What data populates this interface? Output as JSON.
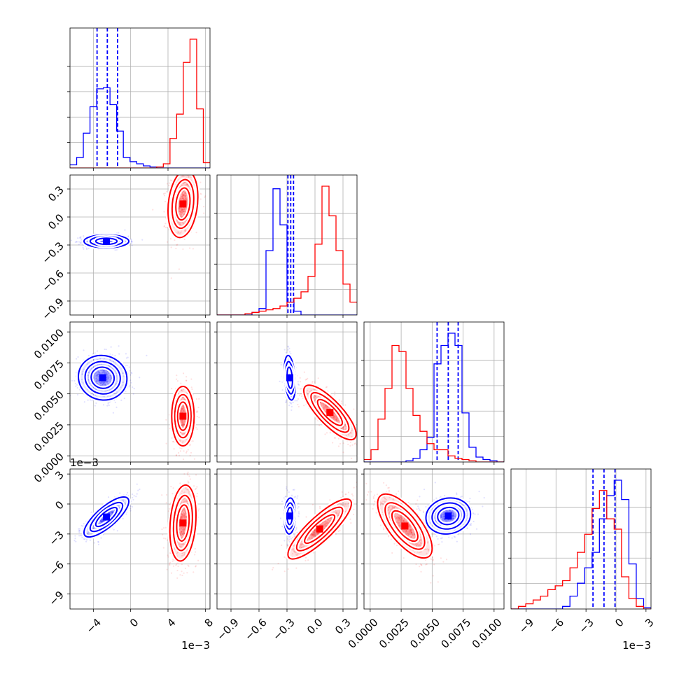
{
  "chart_data": {
    "type": "corner",
    "series": [
      {
        "name": "",
        "color": "#0000ff"
      },
      {
        "name": "",
        "color": "#ff0000"
      }
    ],
    "grid": true,
    "quantiles_shown_for": "blue",
    "parameters": [
      {
        "index": 0,
        "range": [
          -6.5,
          8.5
        ],
        "ticks": [
          -4,
          0,
          4,
          8
        ],
        "tick_labels": [
          "−4",
          "0",
          "4",
          "8"
        ],
        "offset_label": "1e−3"
      },
      {
        "index": 1,
        "range": [
          -1.05,
          0.45
        ],
        "ticks": [
          -0.9,
          -0.6,
          -0.3,
          0.0,
          0.3
        ],
        "tick_labels": [
          "−0.9",
          "−0.6",
          "−0.3",
          "0.0",
          "0.3"
        ],
        "offset_label": ""
      },
      {
        "index": 2,
        "range": [
          -0.0005,
          0.0108
        ],
        "ticks": [
          0.0,
          0.0025,
          0.005,
          0.0075,
          0.01
        ],
        "tick_labels": [
          "0.0000",
          "0.0025",
          "0.0050",
          "0.0075",
          "0.0100"
        ],
        "offset_label": ""
      },
      {
        "index": 3,
        "range": [
          -10.5,
          3.5
        ],
        "ticks": [
          -9,
          -6,
          -3,
          0,
          3
        ],
        "tick_labels": [
          "−9",
          "−6",
          "−3",
          "0",
          "3"
        ],
        "offset_label": "1e−3"
      }
    ],
    "marginals": [
      {
        "param": 0,
        "blue": {
          "counts": [
            0.03,
            0.1,
            0.33,
            0.58,
            0.75,
            0.76,
            0.6,
            0.35,
            0.1,
            0.06,
            0.04,
            0.02,
            0.01,
            0,
            0,
            0,
            0,
            0,
            0,
            0,
            0
          ],
          "quantile_lines": [
            -3.6,
            -2.5,
            -1.4
          ]
        },
        "red": {
          "counts": [
            0,
            0,
            0,
            0,
            0,
            0,
            0,
            0,
            0,
            0,
            0,
            0,
            0,
            0.01,
            0.04,
            0.28,
            0.51,
            1.0,
            1.22,
            0.56,
            0.05
          ],
          "quantile_lines": []
        }
      },
      {
        "param": 1,
        "blue": {
          "counts": [
            0,
            0,
            0,
            0,
            0,
            0.02,
            0.05,
            0.5,
            0.98,
            0.7,
            0.1,
            0.03,
            0,
            0,
            0,
            0,
            0,
            0,
            0,
            0
          ],
          "quantile_lines": [
            -0.29,
            -0.26,
            -0.23
          ]
        },
        "red": {
          "counts": [
            0,
            0,
            0,
            0,
            0.01,
            0.02,
            0.03,
            0.04,
            0.05,
            0.07,
            0.1,
            0.13,
            0.18,
            0.3,
            0.55,
            1.0,
            0.77,
            0.5,
            0.24,
            0.1
          ],
          "quantile_lines": []
        }
      },
      {
        "param": 2,
        "blue": {
          "counts": [
            0,
            0,
            0,
            0,
            0,
            0,
            0.01,
            0.03,
            0.1,
            0.2,
            0.8,
            0.95,
            1.05,
            0.95,
            0.4,
            0.12,
            0.04,
            0.02,
            0.01,
            0
          ],
          "quantile_lines": [
            0.0054,
            0.0063,
            0.0071
          ]
        },
        "red": {
          "counts": [
            0.02,
            0.1,
            0.35,
            0.6,
            0.95,
            0.9,
            0.6,
            0.38,
            0.25,
            0.15,
            0.1,
            0.1,
            0.05,
            0.03,
            0.02,
            0.01,
            0,
            0,
            0,
            0
          ],
          "quantile_lines": []
        }
      },
      {
        "param": 3,
        "blue": {
          "counts": [
            0,
            0,
            0,
            0,
            0,
            0,
            0,
            0.02,
            0.1,
            0.2,
            0.32,
            0.44,
            0.7,
            0.88,
            1.0,
            0.85,
            0.35,
            0.08,
            0.01
          ],
          "quantile_lines": [
            -2.3,
            -1.2,
            -0.1
          ]
        },
        "red": {
          "counts": [
            0,
            0.02,
            0.04,
            0.07,
            0.1,
            0.15,
            0.18,
            0.22,
            0.32,
            0.44,
            0.58,
            0.78,
            0.92,
            0.7,
            0.62,
            0.25,
            0.08,
            0.02,
            0
          ]
        }
      }
    ],
    "scatter_panels": [
      {
        "x": 0,
        "y": 1,
        "blue": {
          "center": [
            -2.6,
            -0.26
          ],
          "sd": [
            1.2,
            0.035
          ],
          "corr": 0.0
        },
        "red": {
          "center": [
            5.6,
            0.14
          ],
          "sd": [
            0.8,
            0.18
          ],
          "corr": 0.2
        }
      },
      {
        "x": 0,
        "y": 2,
        "blue": {
          "center": [
            -3.0,
            0.0063
          ],
          "sd": [
            1.3,
            0.0009
          ],
          "corr": -0.05
        },
        "red": {
          "center": [
            5.6,
            0.0032
          ],
          "sd": [
            0.6,
            0.0012
          ],
          "corr": 0.0
        }
      },
      {
        "x": 1,
        "y": 2,
        "blue": {
          "center": [
            -0.27,
            0.0063
          ],
          "sd": [
            0.03,
            0.0009
          ],
          "corr": -0.3
        },
        "red": {
          "center": [
            0.16,
            0.0035
          ],
          "sd": [
            0.14,
            0.0011
          ],
          "corr": -0.8
        }
      },
      {
        "x": 0,
        "y": 3,
        "blue": {
          "center": [
            -2.6,
            -1.3
          ],
          "sd": [
            1.2,
            1.0
          ],
          "corr": 0.78
        },
        "red": {
          "center": [
            5.6,
            -1.9
          ],
          "sd": [
            0.7,
            1.9
          ],
          "corr": 0.2
        }
      },
      {
        "x": 1,
        "y": 3,
        "blue": {
          "center": [
            -0.27,
            -1.2
          ],
          "sd": [
            0.03,
            0.9
          ],
          "corr": 0.1
        },
        "red": {
          "center": [
            0.05,
            -2.5
          ],
          "sd": [
            0.17,
            1.5
          ],
          "corr": 0.85
        }
      },
      {
        "x": 2,
        "y": 3,
        "blue": {
          "center": [
            0.0063,
            -1.2
          ],
          "sd": [
            0.0009,
            0.9
          ],
          "corr": 0.1
        },
        "red": {
          "center": [
            0.0028,
            -2.2
          ],
          "sd": [
            0.0011,
            1.6
          ],
          "corr": -0.7
        }
      }
    ]
  }
}
